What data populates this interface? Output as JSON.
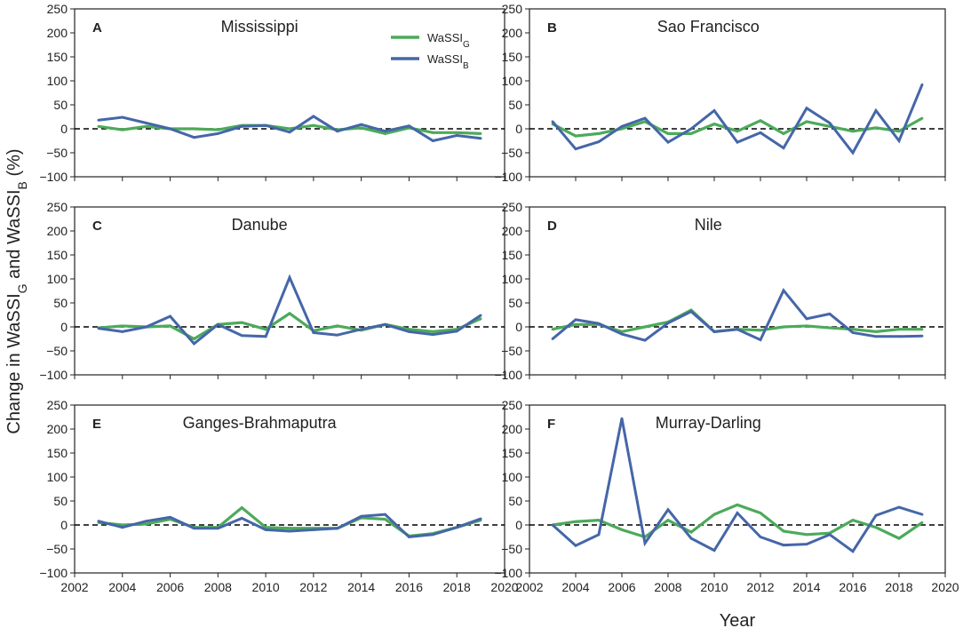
{
  "chart_data": {
    "type": "line",
    "xlabel": "Year",
    "ylabel": "Change in WaSSI_G and WaSSI_B (%)",
    "xlim": [
      2002,
      2020
    ],
    "ylim": [
      -100,
      250
    ],
    "xticks": [
      2002,
      2004,
      2006,
      2008,
      2010,
      2012,
      2014,
      2016,
      2018,
      2020
    ],
    "yticks": [
      -100,
      -50,
      0,
      50,
      100,
      150,
      200,
      250
    ],
    "reference_line": 0,
    "years": [
      2003,
      2004,
      2005,
      2006,
      2007,
      2008,
      2009,
      2010,
      2011,
      2012,
      2013,
      2014,
      2015,
      2016,
      2017,
      2018,
      2019
    ],
    "legend": {
      "location": "top-right of panel A",
      "entries": [
        {
          "label": "WaSSI",
          "subscript": "G",
          "color": "#4caa5a"
        },
        {
          "label": "WaSSI",
          "subscript": "B",
          "color": "#4566a8"
        }
      ]
    },
    "colors": {
      "green": "#4caa5a",
      "blue": "#4566a8",
      "zero": "#000000"
    },
    "panels": [
      {
        "letter": "A",
        "title": "Mississippi",
        "series": [
          {
            "name": "WaSSI_G",
            "values": [
              5,
              -2,
              5,
              0,
              0,
              -2,
              7,
              7,
              0,
              7,
              -2,
              2,
              -10,
              2,
              -8,
              -8,
              -10
            ]
          },
          {
            "name": "WaSSI_B",
            "values": [
              18,
              24,
              12,
              0,
              -18,
              -10,
              5,
              7,
              -7,
              26,
              -5,
              9,
              -5,
              6,
              -25,
              -14,
              -20
            ]
          }
        ]
      },
      {
        "letter": "B",
        "title": "Sao Francisco",
        "series": [
          {
            "name": "WaSSI_G",
            "values": [
              10,
              -15,
              -10,
              0,
              15,
              -10,
              -10,
              10,
              -5,
              17,
              -10,
              15,
              5,
              -5,
              2,
              -5,
              22
            ]
          },
          {
            "name": "WaSSI_B",
            "values": [
              15,
              -42,
              -27,
              5,
              22,
              -28,
              0,
              38,
              -28,
              -8,
              -40,
              43,
              12,
              -50,
              38,
              -25,
              92
            ]
          }
        ]
      },
      {
        "letter": "C",
        "title": "Danube",
        "series": [
          {
            "name": "WaSSI_G",
            "values": [
              -2,
              2,
              0,
              2,
              -25,
              5,
              9,
              -5,
              28,
              -8,
              2,
              -7,
              5,
              -5,
              -10,
              -5,
              17
            ]
          },
          {
            "name": "WaSSI_B",
            "values": [
              -3,
              -10,
              0,
              22,
              -35,
              5,
              -18,
              -20,
              103,
              -12,
              -17,
              -5,
              5,
              -10,
              -16,
              -9,
              24
            ]
          }
        ]
      },
      {
        "letter": "D",
        "title": "Nile",
        "series": [
          {
            "name": "WaSSI_G",
            "values": [
              -5,
              5,
              5,
              -10,
              0,
              10,
              35,
              -10,
              -5,
              -7,
              0,
              2,
              -2,
              -5,
              -10,
              -5,
              -5
            ]
          },
          {
            "name": "WaSSI_B",
            "values": [
              -25,
              15,
              7,
              -15,
              -28,
              8,
              32,
              -10,
              -5,
              -27,
              76,
              17,
              27,
              -12,
              -20,
              -20,
              -19
            ]
          }
        ]
      },
      {
        "letter": "E",
        "title": "Ganges-Brahmaputra",
        "series": [
          {
            "name": "WaSSI_G",
            "values": [
              5,
              0,
              2,
              12,
              -5,
              -5,
              36,
              -5,
              -7,
              -7,
              -7,
              15,
              12,
              -23,
              -18,
              -5,
              10
            ]
          },
          {
            "name": "WaSSI_B",
            "values": [
              8,
              -5,
              8,
              16,
              -7,
              -7,
              14,
              -10,
              -13,
              -10,
              -7,
              18,
              22,
              -25,
              -20,
              -5,
              13
            ]
          }
        ]
      },
      {
        "letter": "F",
        "title": "Murray-Darling",
        "series": [
          {
            "name": "WaSSI_G",
            "values": [
              0,
              7,
              10,
              -10,
              -25,
              10,
              -15,
              22,
              42,
              25,
              -13,
              -20,
              -17,
              10,
              -5,
              -28,
              5
            ]
          },
          {
            "name": "WaSSI_B",
            "values": [
              0,
              -43,
              -20,
              222,
              -38,
              32,
              -28,
              -53,
              25,
              -25,
              -42,
              -40,
              -20,
              -55,
              20,
              37,
              22
            ]
          }
        ]
      }
    ]
  }
}
